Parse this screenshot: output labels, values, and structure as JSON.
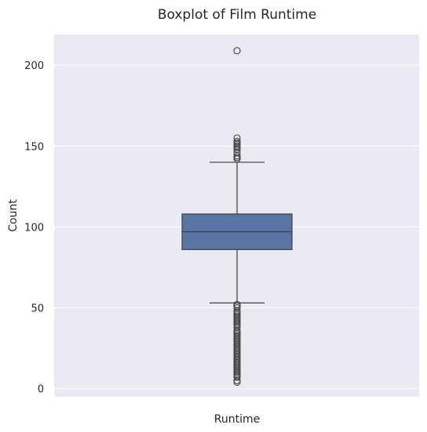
{
  "chart_data": {
    "type": "boxplot",
    "title": "Boxplot of Film Runtime",
    "xlabel": "Runtime",
    "ylabel": "Count",
    "ylim": [
      -5,
      219
    ],
    "yticks": [
      0,
      50,
      100,
      150,
      200
    ],
    "grid": true,
    "box": {
      "category": "Runtime",
      "whisker_low": 53,
      "q1": 86,
      "median": 97,
      "q3": 108,
      "whisker_high": 140,
      "color": "#5975a4"
    },
    "outliers": [
      209,
      155,
      153,
      152,
      151,
      150,
      149,
      148,
      146,
      144,
      143,
      142,
      52,
      51,
      50,
      48,
      47,
      46,
      45,
      44,
      43,
      42,
      41,
      40,
      39,
      38,
      36,
      35,
      34,
      33,
      32,
      31,
      30,
      29,
      28,
      27,
      26,
      25,
      24,
      23,
      22,
      21,
      20,
      19,
      18,
      17,
      16,
      15,
      14,
      13,
      12,
      11,
      10,
      9,
      8,
      7,
      5,
      4
    ]
  },
  "colors": {
    "plot_background": "#eaeaf2",
    "grid": "#ffffff",
    "line": "#3f3f3f"
  }
}
